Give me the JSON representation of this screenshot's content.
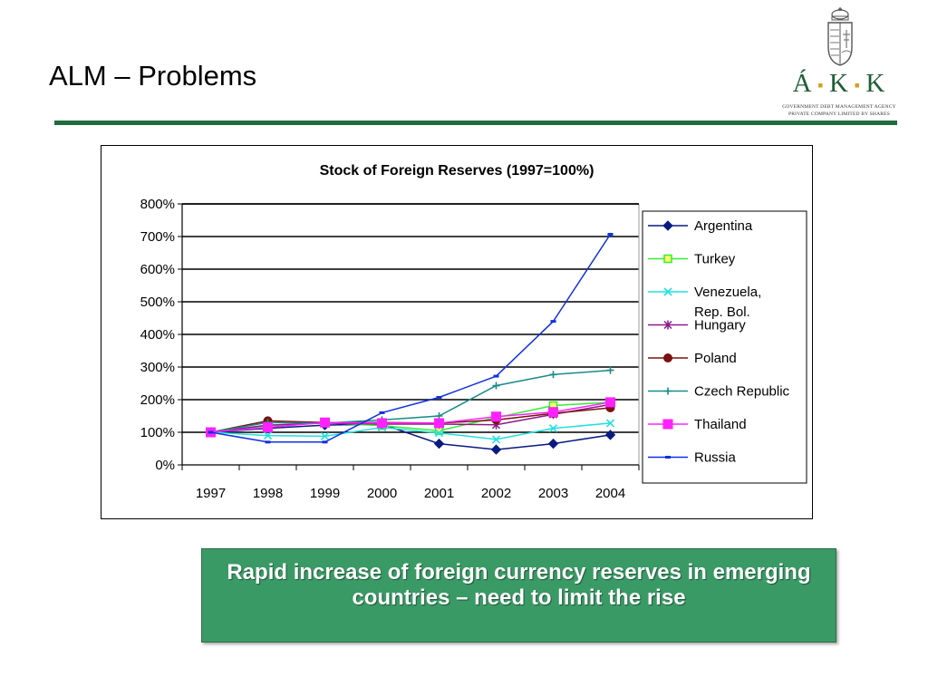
{
  "slide": {
    "title": "ALM – Problems",
    "callout": "Rapid increase of foreign currency reserves in emerging countries – need to limit the rise"
  },
  "logo": {
    "letters": [
      "Á",
      "K",
      "K"
    ],
    "line1": "GOVERNMENT DEBT MANAGEMENT AGENCY",
    "line2": "PRIVATE COMPANY LIMITED BY SHARES",
    "colors": {
      "text": "#1f5d34",
      "dots": "#d4a01a"
    }
  },
  "chart_data": {
    "type": "line",
    "title": "Stock of Foreign Reserves (1997=100%)",
    "xlabel": "",
    "ylabel": "",
    "x": [
      "1997",
      "1998",
      "1999",
      "2000",
      "2001",
      "2002",
      "2003",
      "2004"
    ],
    "ylim": [
      0,
      800
    ],
    "yticks": [
      "0%",
      "100%",
      "200%",
      "300%",
      "400%",
      "500%",
      "600%",
      "700%",
      "800%"
    ],
    "grid": "horizontal",
    "legend_position": "right",
    "series": [
      {
        "name": "Argentina",
        "color": "#0a1a80",
        "marker": "diamond",
        "values": [
          100,
          112,
          122,
          125,
          65,
          47,
          65,
          92
        ]
      },
      {
        "name": "Turkey",
        "color": "#33ee33",
        "marker": "square-open",
        "values": [
          100,
          120,
          130,
          120,
          105,
          145,
          182,
          192
        ]
      },
      {
        "name": "Venezuela, Rep. Bol.",
        "color": "#22e0e0",
        "marker": "x",
        "values": [
          100,
          90,
          88,
          115,
          98,
          78,
          112,
          128
        ]
      },
      {
        "name": "Hungary",
        "color": "#8a1a8a",
        "marker": "star",
        "values": [
          100,
          122,
          128,
          125,
          125,
          123,
          155,
          185
        ]
      },
      {
        "name": "Poland",
        "color": "#7a1010",
        "marker": "circle",
        "values": [
          100,
          135,
          130,
          130,
          128,
          138,
          158,
          175
        ]
      },
      {
        "name": "Czech Republic",
        "color": "#1a8a8a",
        "marker": "plus",
        "values": [
          100,
          130,
          128,
          138,
          150,
          243,
          277,
          290
        ]
      },
      {
        "name": "Thailand",
        "color": "#ff22ff",
        "marker": "square",
        "values": [
          100,
          115,
          130,
          128,
          128,
          148,
          162,
          192
        ]
      },
      {
        "name": "Russia",
        "color": "#1030e0",
        "marker": "dash",
        "values": [
          100,
          70,
          70,
          160,
          207,
          272,
          440,
          707
        ]
      }
    ]
  }
}
